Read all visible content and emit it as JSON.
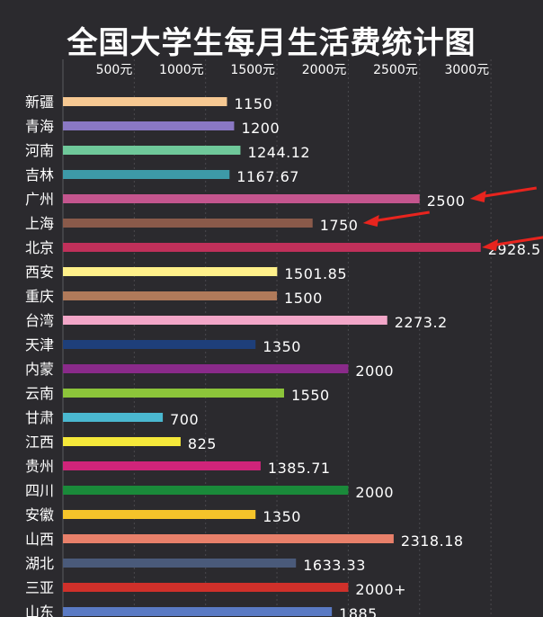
{
  "chart_data": {
    "type": "bar",
    "orientation": "horizontal",
    "title": "全国大学生每月生活费统计图",
    "xlim": [
      0,
      3000
    ],
    "x_ticks": [
      {
        "value": 500,
        "label": "500元"
      },
      {
        "value": 1000,
        "label": "1000元"
      },
      {
        "value": 1500,
        "label": "1500元"
      },
      {
        "value": 2000,
        "label": "2000元"
      },
      {
        "value": 2500,
        "label": "2500元"
      },
      {
        "value": 3000,
        "label": "3000元"
      }
    ],
    "grid": true,
    "bars": [
      {
        "category": "新疆",
        "value": 1150,
        "label": "1150",
        "color": "#f6c892"
      },
      {
        "category": "青海",
        "value": 1200,
        "label": "1200",
        "color": "#8a78c4"
      },
      {
        "category": "河南",
        "value": 1244.12,
        "label": "1244.12",
        "color": "#6fc89a"
      },
      {
        "category": "吉林",
        "value": 1167.67,
        "label": "1167.67",
        "color": "#3d9aa8"
      },
      {
        "category": "广州",
        "value": 2500,
        "label": "2500",
        "color": "#c4558e"
      },
      {
        "category": "上海",
        "value": 1750,
        "label": "1750",
        "color": "#8a5a4a"
      },
      {
        "category": "北京",
        "value": 2928.5,
        "label": "2928.5",
        "color": "#c0305a"
      },
      {
        "category": "西安",
        "value": 1501.85,
        "label": "1501.85",
        "color": "#fff08a"
      },
      {
        "category": "重庆",
        "value": 1500,
        "label": "1500",
        "color": "#b07a5a"
      },
      {
        "category": "台湾",
        "value": 2273.2,
        "label": "2273.2",
        "color": "#f2a6c8"
      },
      {
        "category": "天津",
        "value": 1350,
        "label": "1350",
        "color": "#1e3f7a"
      },
      {
        "category": "内蒙",
        "value": 2000,
        "label": "2000",
        "color": "#8a2a8a"
      },
      {
        "category": "云南",
        "value": 1550,
        "label": "1550",
        "color": "#8cc43a"
      },
      {
        "category": "甘肃",
        "value": 700,
        "label": "700",
        "color": "#4ab8d0"
      },
      {
        "category": "江西",
        "value": 825,
        "label": "825",
        "color": "#f5e83a"
      },
      {
        "category": "贵州",
        "value": 1385.71,
        "label": "1385.71",
        "color": "#d0247a"
      },
      {
        "category": "四川",
        "value": 2000,
        "label": "2000",
        "color": "#1a8a3a"
      },
      {
        "category": "安徽",
        "value": 1350,
        "label": "1350",
        "color": "#f5c42a"
      },
      {
        "category": "山西",
        "value": 2318.18,
        "label": "2318.18",
        "color": "#e8806a"
      },
      {
        "category": "湖北",
        "value": 1633.33,
        "label": "1633.33",
        "color": "#4a5a7a"
      },
      {
        "category": "三亚",
        "value": 2000,
        "label": "2000+",
        "color": "#d0302a"
      },
      {
        "category": "山东",
        "value": 1885,
        "label": "1885",
        "color": "#5a7ac4"
      }
    ],
    "annotations": [
      {
        "type": "arrow",
        "target": "广州",
        "color": "#e8241e"
      },
      {
        "type": "arrow",
        "target": "上海",
        "color": "#e8241e"
      },
      {
        "type": "arrow",
        "target": "北京",
        "color": "#e8241e"
      }
    ]
  }
}
